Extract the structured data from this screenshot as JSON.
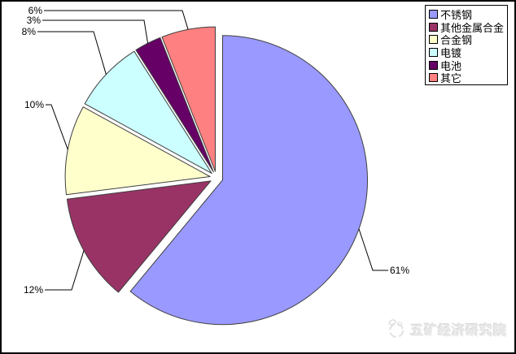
{
  "chart_data": {
    "type": "pie",
    "title": "",
    "exploded": true,
    "legend_position": "top-right",
    "slices": [
      {
        "label": "不锈钢",
        "value": 61,
        "percent_label": "61%",
        "color": "#9999FF"
      },
      {
        "label": "其他金属合金",
        "value": 12,
        "percent_label": "12%",
        "color": "#993366"
      },
      {
        "label": "合金钢",
        "value": 10,
        "percent_label": "10%",
        "color": "#FFFFCC"
      },
      {
        "label": "电镀",
        "value": 8,
        "percent_label": "8%",
        "color": "#CCFFFF"
      },
      {
        "label": "电池",
        "value": 3,
        "percent_label": "3%",
        "color": "#660066"
      },
      {
        "label": "其它",
        "value": 6,
        "percent_label": "6%",
        "color": "#FF8080"
      }
    ]
  },
  "watermark": {
    "text": "五矿经济研究院"
  },
  "colors": {
    "frame_border": "#000000",
    "slice_outline": "#3f3f3f",
    "leader_line": "#000000",
    "background": "#FFFFFF",
    "watermark_text": "#e6e6e6"
  }
}
